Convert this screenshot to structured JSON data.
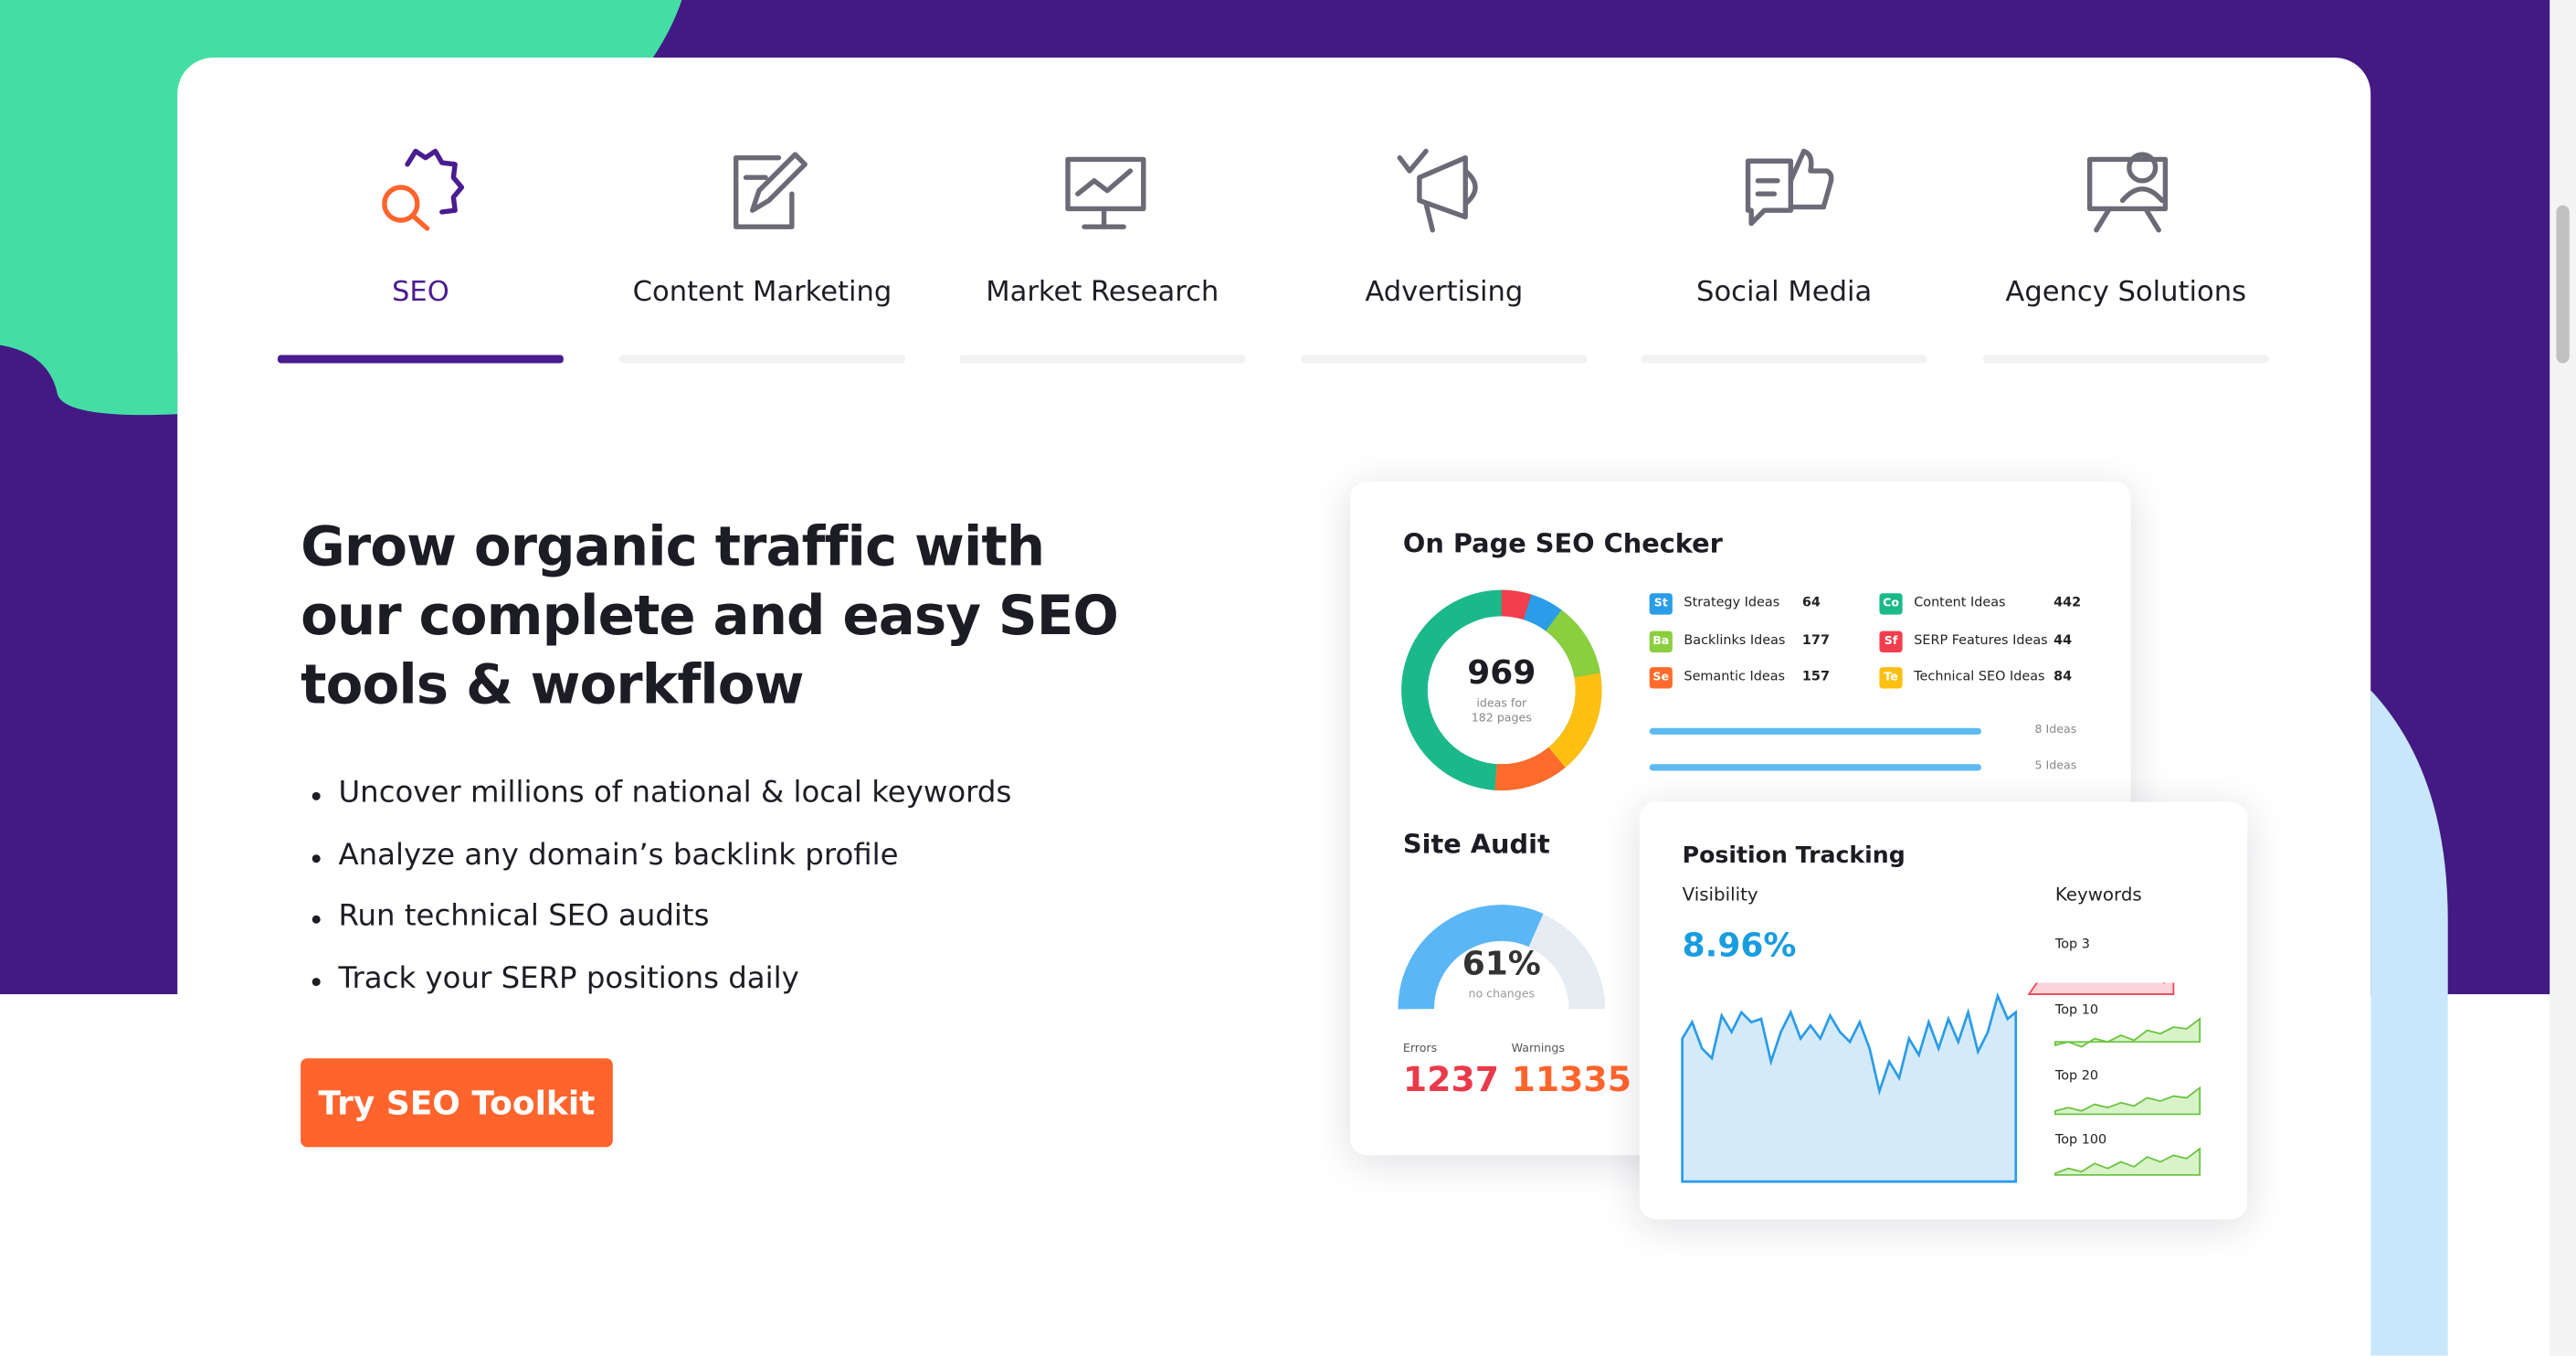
{
  "tabs": [
    {
      "label": "SEO"
    },
    {
      "label": "Content Marketing"
    },
    {
      "label": "Market Research"
    },
    {
      "label": "Advertising"
    },
    {
      "label": "Social Media"
    },
    {
      "label": "Agency Solutions"
    }
  ],
  "hero": {
    "title_lines": [
      "Grow organic traffic with",
      "our complete and easy SEO",
      "tools & workflow"
    ],
    "bullets": [
      "Uncover millions of national & local keywords",
      "Analyze any domain’s backlink profile",
      "Run technical SEO audits",
      "Track your SERP positions daily"
    ],
    "button": "Try SEO Toolkit"
  },
  "dashboard": {
    "on_page": {
      "title": "On Page SEO Checker",
      "total": "969",
      "caption_lines": [
        "ideas for",
        "182 pages"
      ],
      "items": [
        {
          "badge": "St",
          "label": "Strategy Ideas",
          "value": "64"
        },
        {
          "badge": "Ba",
          "label": "Backlinks Ideas",
          "value": "177"
        },
        {
          "badge": "Se",
          "label": "Semantic Ideas",
          "value": "157"
        },
        {
          "badge": "Co",
          "label": "Content Ideas",
          "value": "442"
        },
        {
          "badge": "Sf",
          "label": "SERP Features Ideas",
          "value": "44"
        },
        {
          "badge": "Te",
          "label": "Technical SEO Ideas",
          "value": "84"
        }
      ],
      "bars": [
        "8 Ideas",
        "5 Ideas"
      ]
    },
    "site_audit": {
      "title": "Site Audit",
      "percent": "61%",
      "caption": "no changes",
      "errors_label": "Errors",
      "errors": "1237",
      "warnings_label": "Warnings",
      "warnings": "11335"
    },
    "position": {
      "title": "Position Tracking",
      "visibility_label": "Visibility",
      "visibility": "8.96%",
      "keywords_label": "Keywords",
      "rows": [
        "Top 3",
        "Top 10",
        "Top 20",
        "Top 100"
      ]
    }
  }
}
